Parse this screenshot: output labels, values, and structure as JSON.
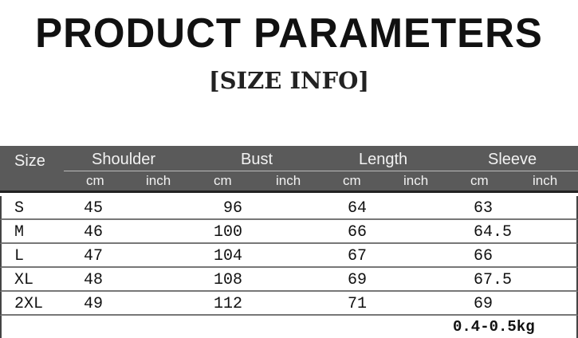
{
  "title": "PRODUCT PARAMETERS",
  "subtitle": "[SIZE INFO]",
  "table": {
    "size_header": "Size",
    "groups": [
      "Shoulder",
      "Bust",
      "Length",
      "Sleeve"
    ],
    "units": [
      "cm",
      "inch",
      "cm",
      "inch",
      "cm",
      "inch",
      "cm",
      "inch"
    ],
    "rows": [
      {
        "size": "S",
        "shoulder": "45",
        "bust": "96",
        "length": "64",
        "sleeve": "63"
      },
      {
        "size": "M",
        "shoulder": "46",
        "bust": "100",
        "length": "66",
        "sleeve": "64.5"
      },
      {
        "size": "L",
        "shoulder": "47",
        "bust": "104",
        "length": "67",
        "sleeve": "66"
      },
      {
        "size": "XL",
        "shoulder": "48",
        "bust": "108",
        "length": "69",
        "sleeve": "67.5"
      },
      {
        "size": "2XL",
        "shoulder": "49",
        "bust": "112",
        "length": "71",
        "sleeve": "69"
      }
    ],
    "weight": "0.4-0.5kg"
  }
}
